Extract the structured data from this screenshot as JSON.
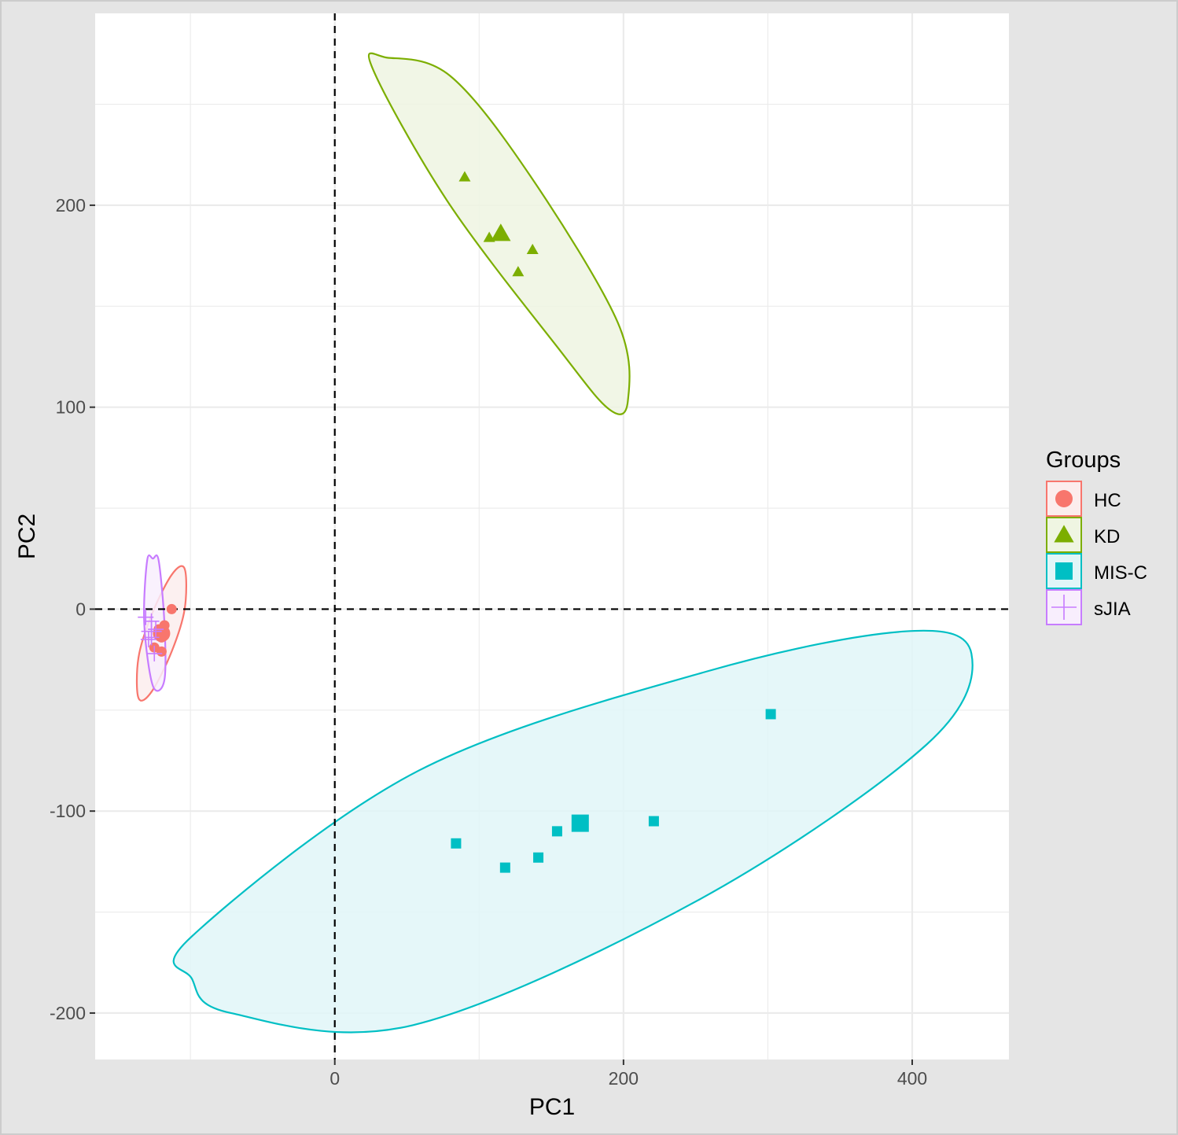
{
  "chart_data": {
    "type": "scatter",
    "title": "",
    "xlabel": "PC1",
    "ylabel": "PC2",
    "xlim": [
      -166,
      467
    ],
    "ylim": [
      -223,
      295
    ],
    "x_ticks": [
      0,
      200,
      400
    ],
    "y_ticks": [
      -200,
      -100,
      0,
      100,
      200
    ],
    "x_tick_labels": [
      "0",
      "200",
      "400"
    ],
    "y_tick_labels": [
      "-200",
      "-100",
      "0",
      "100",
      "200"
    ],
    "reference_lines": {
      "x": 0,
      "y": 0,
      "style": "dashed"
    },
    "grid": true,
    "legend": {
      "title": "Groups",
      "position": "right",
      "entries": [
        {
          "label": "HC",
          "shape": "circle"
        },
        {
          "label": "KD",
          "shape": "triangle"
        },
        {
          "label": "MIS-C",
          "shape": "square"
        },
        {
          "label": "sJIA",
          "shape": "cross"
        }
      ]
    },
    "series": [
      {
        "name": "HC",
        "shape": "circle",
        "color": "#F8766D",
        "fill": "#FCEDED",
        "points": [
          [
            -113,
            0
          ],
          [
            -118,
            -8
          ],
          [
            -122,
            -10
          ],
          [
            -120,
            -14
          ],
          [
            -125,
            -19
          ],
          [
            -120,
            -21
          ]
        ],
        "centroid": [
          -120,
          -12
        ],
        "ellipse_path": [
          [
            -136,
            -24
          ],
          [
            -127,
            -3
          ],
          [
            -113,
            17
          ],
          [
            -104,
            20
          ],
          [
            -104,
            0
          ],
          [
            -113,
            -21
          ],
          [
            -127,
            -41
          ],
          [
            -136,
            -44
          ]
        ]
      },
      {
        "name": "KD",
        "shape": "triangle",
        "color": "#7CAE00",
        "fill": "#EFF5E2",
        "points": [
          [
            90,
            214
          ],
          [
            107,
            184
          ],
          [
            137,
            178
          ],
          [
            127,
            167
          ]
        ],
        "centroid": [
          115,
          186
        ],
        "ellipse_path": [
          [
            26,
            268
          ],
          [
            79,
            201
          ],
          [
            155,
            129
          ],
          [
            190,
            99
          ],
          [
            203,
            103
          ],
          [
            196,
            142
          ],
          [
            135,
            215
          ],
          [
            80,
            264
          ],
          [
            37,
            273
          ]
        ]
      },
      {
        "name": "MIS-C",
        "shape": "square",
        "color": "#00BFC4",
        "fill": "#E1F6F8",
        "points": [
          [
            84,
            -116
          ],
          [
            118,
            -128
          ],
          [
            141,
            -123
          ],
          [
            154,
            -110
          ],
          [
            221,
            -105
          ],
          [
            302,
            -52
          ]
        ],
        "centroid": [
          170,
          -106
        ],
        "ellipse_path": [
          [
            -99,
            -162
          ],
          [
            58,
            -80
          ],
          [
            257,
            -31
          ],
          [
            395,
            -11
          ],
          [
            441,
            -22
          ],
          [
            410,
            -67
          ],
          [
            252,
            -144
          ],
          [
            54,
            -206
          ],
          [
            -72,
            -200
          ],
          [
            -99,
            -183
          ]
        ]
      },
      {
        "name": "sJIA",
        "shape": "cross",
        "color": "#C77CFF",
        "fill": "#F8EEFD",
        "points": [
          [
            -127,
            -6
          ],
          [
            -131,
            -4
          ],
          [
            -124,
            -10
          ],
          [
            -129,
            -15
          ],
          [
            -125,
            -22
          ],
          [
            -127,
            -14
          ]
        ],
        "centroid": [
          -127,
          -11
        ],
        "ellipse_path": [
          [
            -122,
            24
          ],
          [
            -118,
            -7
          ],
          [
            -118,
            -35
          ],
          [
            -126,
            -38
          ],
          [
            -132,
            -7
          ],
          [
            -130,
            24
          ],
          [
            -126,
            25
          ]
        ]
      }
    ]
  }
}
